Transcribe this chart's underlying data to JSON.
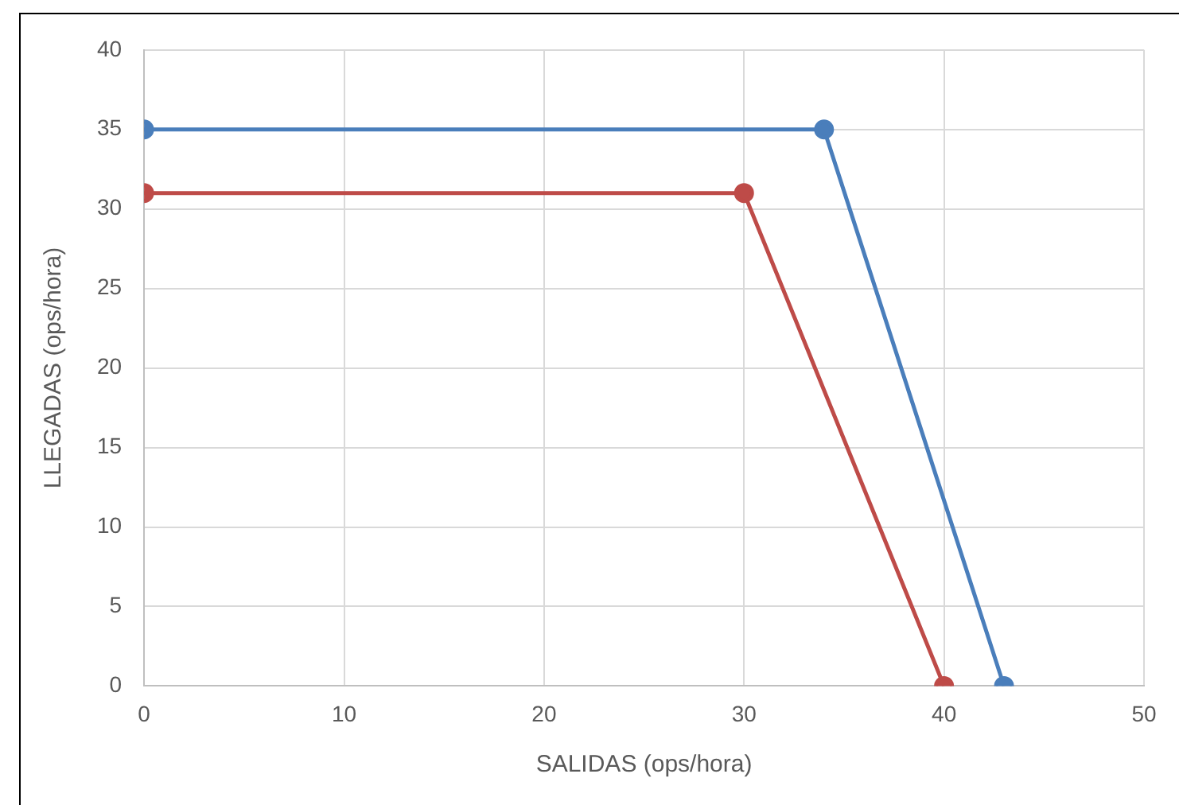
{
  "chart_data": {
    "type": "line",
    "xlabel": "SALIDAS (ops/hora)",
    "ylabel": "LLEGADAS (ops/hora)",
    "series": [
      {
        "color": "#4a7ebb",
        "x": [
          0,
          34,
          43
        ],
        "values": [
          35,
          35,
          0
        ]
      },
      {
        "color": "#be4b48",
        "x": [
          0,
          30,
          40
        ],
        "values": [
          31,
          31,
          0
        ]
      }
    ],
    "xlim": [
      0,
      50
    ],
    "xticks": [
      0,
      10,
      20,
      30,
      40,
      50
    ],
    "ylim": [
      0,
      40
    ],
    "yticks": [
      0,
      5,
      10,
      15,
      20,
      25,
      30,
      35,
      40
    ],
    "grid": true,
    "legend": false,
    "marker": "circle",
    "line_style": "solid"
  }
}
